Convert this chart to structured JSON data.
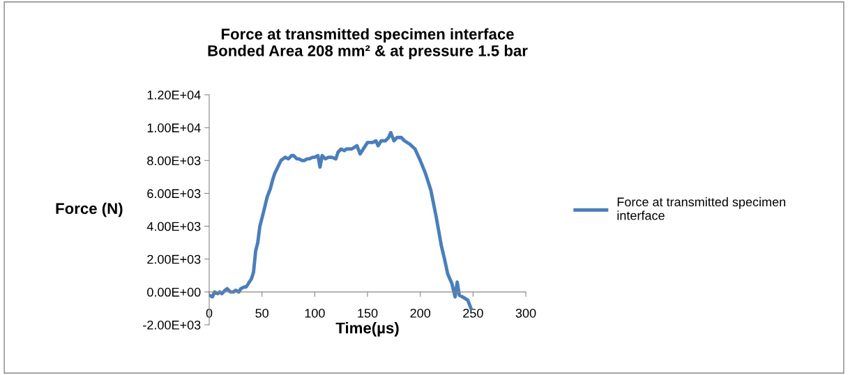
{
  "chart_data": {
    "type": "line",
    "title": "Force at transmitted specimen interface\nBonded Area 208 mm² & at pressure 1.5 bar",
    "xlabel": "Time(µs)",
    "ylabel": "Force (N)",
    "xlim": [
      0,
      300
    ],
    "xticks": [
      0,
      50,
      100,
      150,
      200,
      250,
      300
    ],
    "ylim": [
      -2000,
      12000
    ],
    "yticks": [
      {
        "value": -2000,
        "label": "-2.00E+03"
      },
      {
        "value": 0,
        "label": "0.00E+00"
      },
      {
        "value": 2000,
        "label": "2.00E+03"
      },
      {
        "value": 4000,
        "label": "4.00E+03"
      },
      {
        "value": 6000,
        "label": "6.00E+03"
      },
      {
        "value": 8000,
        "label": "8.00E+03"
      },
      {
        "value": 10000,
        "label": "1.00E+04"
      },
      {
        "value": 12000,
        "label": "1.20E+04"
      }
    ],
    "grid": false,
    "legend": "right",
    "marker": "none",
    "line_style": "solid",
    "x": [
      0,
      3,
      5,
      8,
      10,
      12,
      15,
      17,
      20,
      23,
      25,
      28,
      30,
      33,
      35,
      38,
      40,
      42,
      44,
      46,
      48,
      50,
      52,
      55,
      58,
      60,
      62,
      65,
      68,
      70,
      72,
      75,
      78,
      80,
      83,
      85,
      88,
      90,
      93,
      95,
      98,
      100,
      103,
      105,
      107,
      110,
      113,
      116,
      120,
      122,
      125,
      128,
      130,
      135,
      140,
      143,
      147,
      150,
      155,
      158,
      160,
      163,
      167,
      170,
      172,
      175,
      178,
      182,
      185,
      190,
      195,
      200,
      205,
      210,
      215,
      220,
      223,
      226,
      230,
      233,
      235,
      237,
      240,
      245,
      248
    ],
    "series": [
      {
        "name": "Force at transmitted specimen\ninterface",
        "color": "#4a7ebb",
        "values": [
          -200,
          -300,
          0,
          -100,
          0,
          -100,
          100,
          200,
          0,
          0,
          100,
          0,
          200,
          300,
          300,
          600,
          800,
          1200,
          2500,
          3000,
          4000,
          4500,
          5000,
          5800,
          6300,
          6800,
          7200,
          7600,
          8000,
          8100,
          8200,
          8100,
          8300,
          8300,
          8100,
          8100,
          8000,
          8000,
          8100,
          8100,
          8200,
          8200,
          8300,
          7600,
          8300,
          8100,
          8200,
          8200,
          8100,
          8500,
          8700,
          8600,
          8700,
          8700,
          8900,
          8400,
          8800,
          9100,
          9100,
          9200,
          8900,
          9200,
          9200,
          9400,
          9700,
          9200,
          9400,
          9400,
          9200,
          9000,
          8700,
          8000,
          7200,
          6200,
          4600,
          2800,
          2000,
          1100,
          500,
          -300,
          600,
          -200,
          -300,
          -500,
          -1000
        ]
      }
    ]
  }
}
